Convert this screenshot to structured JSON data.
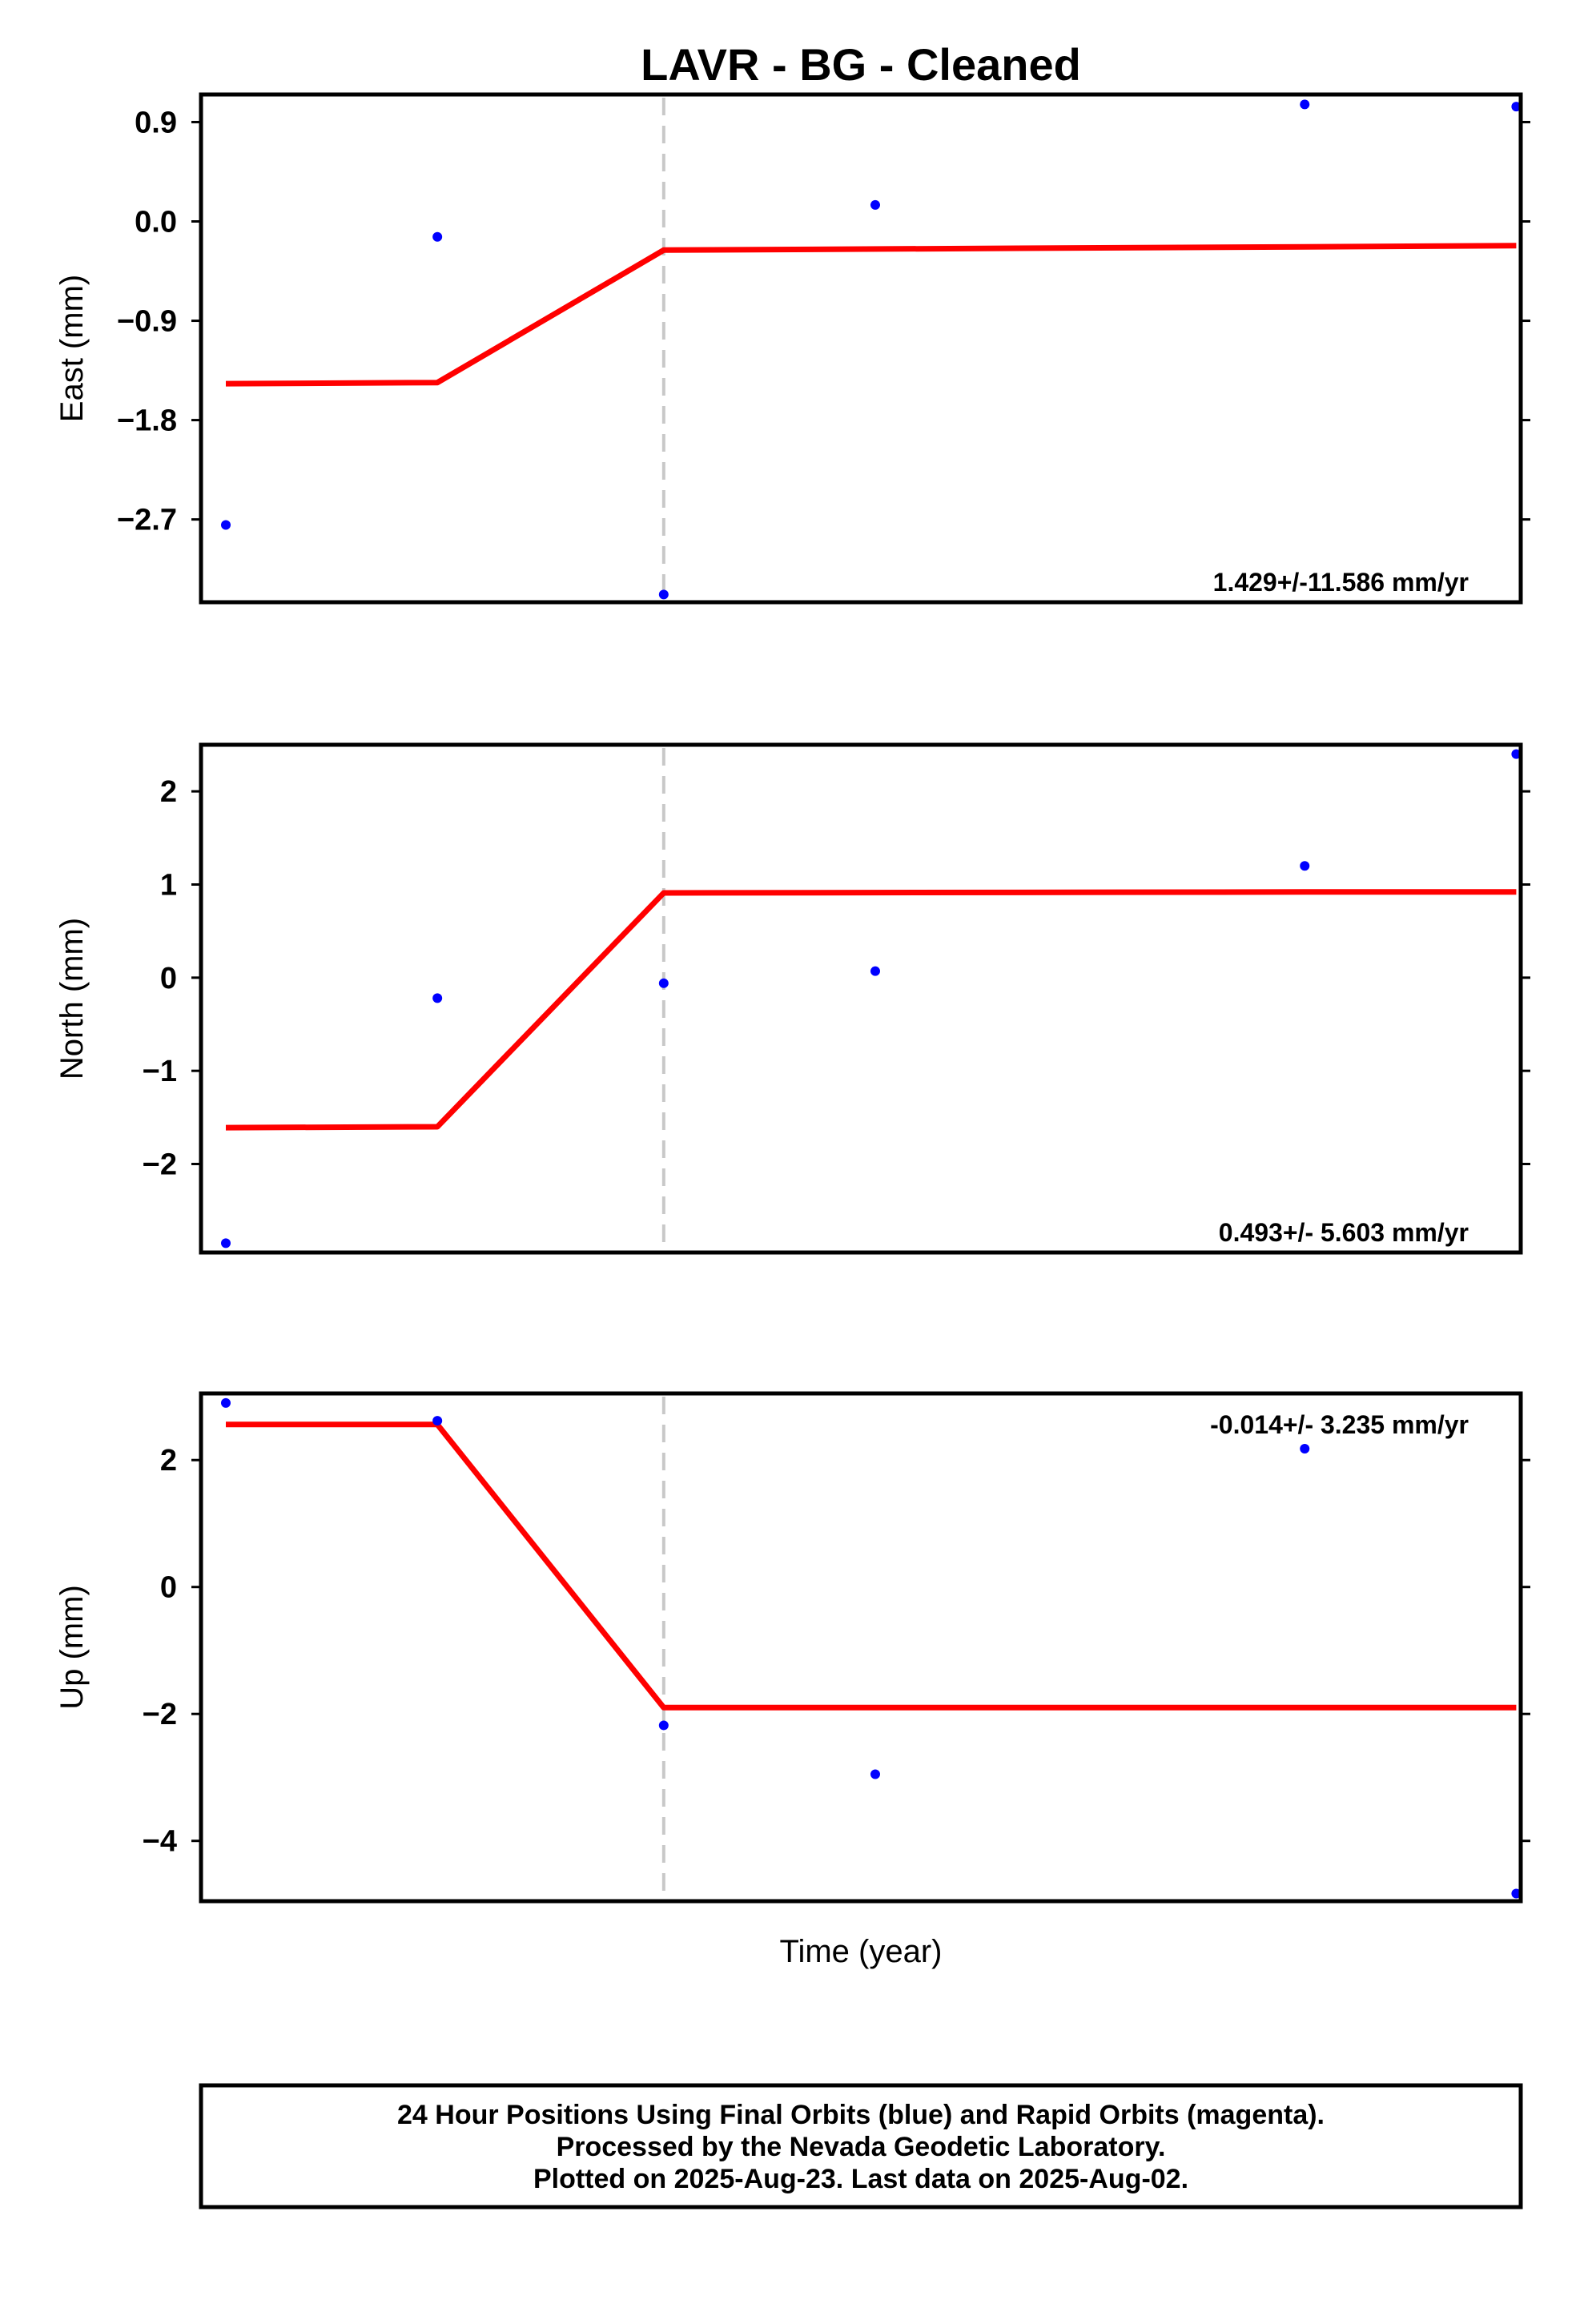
{
  "chart_data": {
    "type": "scatter",
    "title": "LAVR  - BG - Cleaned",
    "xlabel": "Time (year)",
    "x_positions": [
      0.0,
      1.0,
      2.0,
      3.0,
      4.0,
      5.0,
      6.0
    ],
    "panels": [
      {
        "ylabel": "East (mm)",
        "ylim": [
          -3.45,
          1.15
        ],
        "yticks": [
          0.9,
          0.0,
          -0.9,
          -1.8,
          -2.7
        ],
        "ytick_labels": [
          "0.9",
          "0.0",
          "−0.9",
          "−1.8",
          "−2.7"
        ],
        "rate_text": "1.429+/-11.586 mm/yr",
        "rate_position": "bottom-right",
        "points": [
          [
            0.0,
            -2.75
          ],
          [
            1.0,
            -0.14
          ],
          [
            2.07,
            -3.38
          ],
          [
            3.07,
            0.15
          ],
          [
            5.1,
            1.06
          ],
          [
            6.1,
            1.04
          ]
        ],
        "fit": [
          [
            0.0,
            -1.47
          ],
          [
            1.0,
            -1.46
          ],
          [
            2.07,
            -0.26
          ],
          [
            5.1,
            -0.23
          ],
          [
            6.1,
            -0.22
          ]
        ],
        "break_x": 2.07
      },
      {
        "ylabel": "North (mm)",
        "ylim": [
          -2.95,
          2.5
        ],
        "yticks": [
          2,
          1,
          0,
          -1,
          -2
        ],
        "ytick_labels": [
          "2",
          "1",
          "0",
          "−1",
          "−2"
        ],
        "rate_text": "0.493+/- 5.603 mm/yr",
        "rate_position": "bottom-right",
        "points": [
          [
            0.0,
            -2.85
          ],
          [
            1.0,
            -0.22
          ],
          [
            2.07,
            -0.06
          ],
          [
            3.07,
            0.07
          ],
          [
            5.1,
            1.2
          ],
          [
            6.1,
            2.4
          ]
        ],
        "fit": [
          [
            0.0,
            -1.61
          ],
          [
            1.0,
            -1.6
          ],
          [
            2.07,
            0.91
          ],
          [
            5.1,
            0.92
          ],
          [
            6.1,
            0.92
          ]
        ],
        "break_x": 2.07
      },
      {
        "ylabel": "Up (mm)",
        "ylim": [
          -4.95,
          3.05
        ],
        "yticks": [
          2,
          0,
          -2,
          -4
        ],
        "ytick_labels": [
          "2",
          "0",
          "−2",
          "−4"
        ],
        "rate_text": "-0.014+/- 3.235 mm/yr",
        "rate_position": "top-right",
        "points": [
          [
            0.0,
            2.9
          ],
          [
            1.0,
            2.62
          ],
          [
            2.07,
            -2.18
          ],
          [
            3.07,
            -2.95
          ],
          [
            5.1,
            2.18
          ],
          [
            6.1,
            -4.83
          ]
        ],
        "fit": [
          [
            0.0,
            2.56
          ],
          [
            1.0,
            2.56
          ],
          [
            2.07,
            -1.9
          ],
          [
            5.1,
            -1.9
          ],
          [
            6.1,
            -1.9
          ]
        ],
        "break_x": 2.07
      }
    ],
    "grid": false,
    "colors": {
      "points": "#0000ff",
      "fit": "#ff0000",
      "break": "#c8c8c8",
      "frame": "#000000"
    }
  },
  "footer": {
    "line1": "24 Hour Positions Using Final Orbits (blue) and Rapid Orbits (magenta).",
    "line2": "Processed by the Nevada Geodetic Laboratory.",
    "line3": "Plotted on 2025-Aug-23. Last data on 2025-Aug-02."
  }
}
